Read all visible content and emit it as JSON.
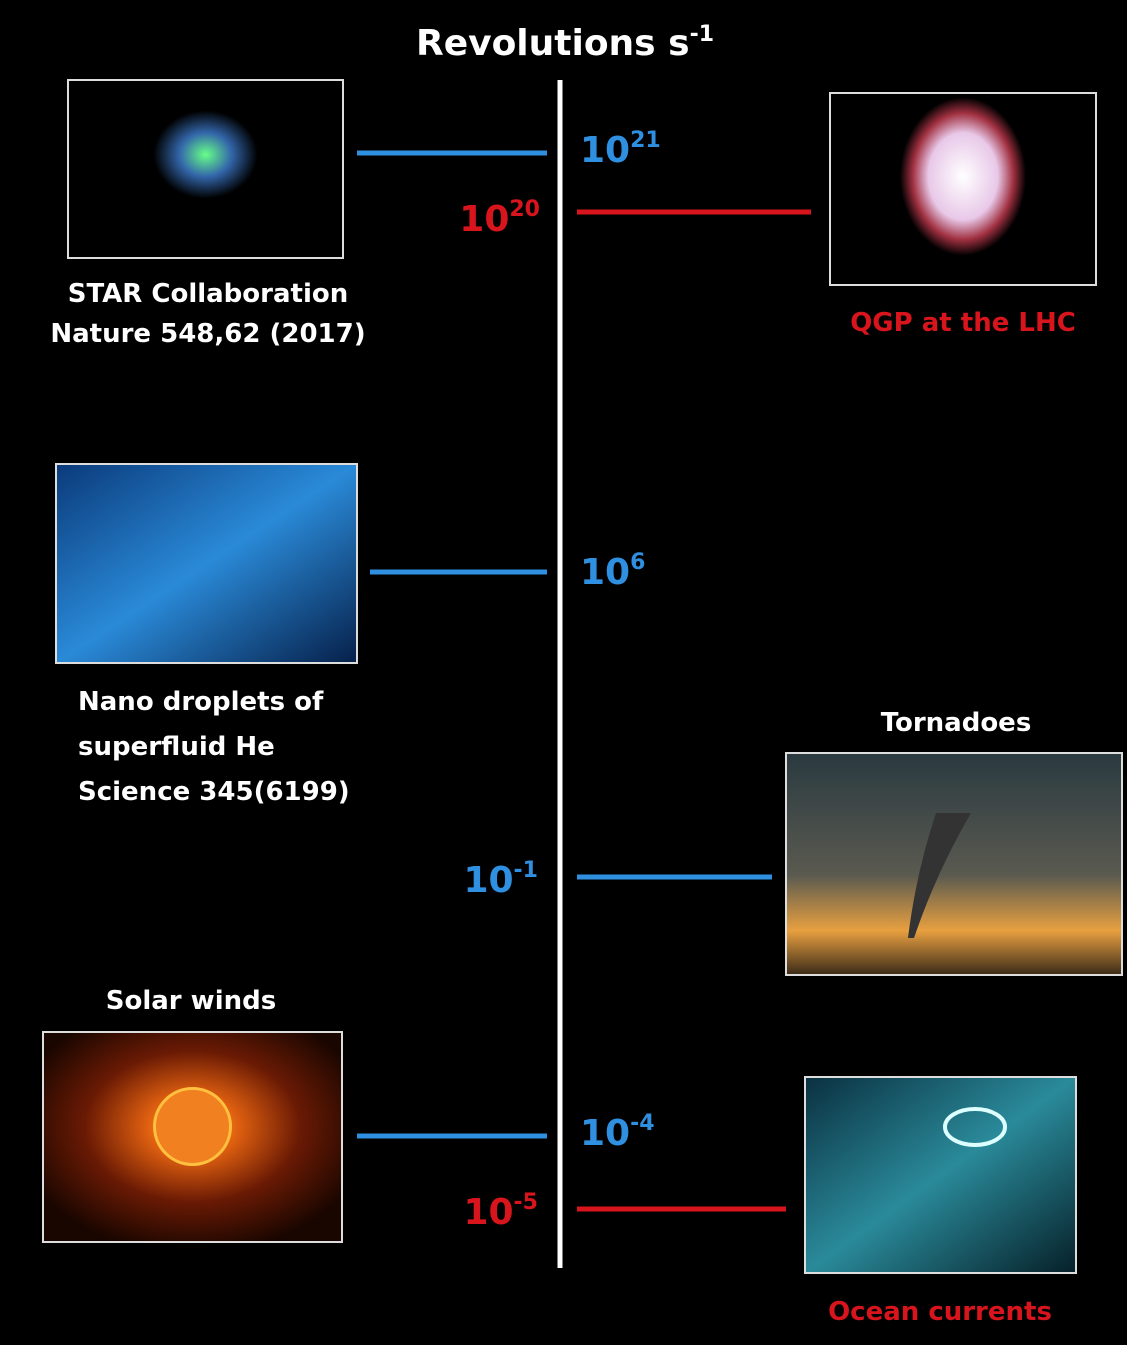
{
  "title": {
    "text": "Revolutions s",
    "superscript": "-1"
  },
  "items": [
    {
      "label": [
        "STAR Collaboration",
        "Nature 548,62 (2017)"
      ],
      "base": "10",
      "exponent": "21"
    },
    {
      "label": [
        "QGP at the LHC"
      ],
      "base": "10",
      "exponent": "20"
    },
    {
      "label": [
        "Nano droplets of",
        "superfluid He",
        "Science 345(6199)"
      ],
      "base": "10",
      "exponent": "6"
    },
    {
      "label": [
        "Tornadoes"
      ],
      "base": "10",
      "exponent": "-1"
    },
    {
      "label": [
        "Solar winds"
      ],
      "base": "10",
      "exponent": "-4"
    },
    {
      "label": [
        "Ocean currents"
      ],
      "base": "10",
      "exponent": "-5"
    }
  ]
}
